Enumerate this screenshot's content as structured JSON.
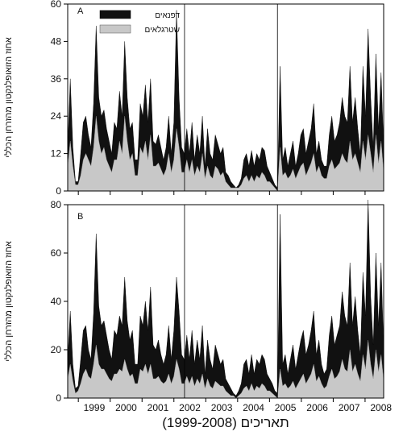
{
  "chart_data": [
    {
      "panel": "A",
      "type": "area",
      "ylabel": "אחוז הזואופלנקטון מהזרחן הכללי",
      "ylim": [
        0,
        60
      ],
      "yticks": [
        "0",
        "12",
        "24",
        "36",
        "48",
        "60"
      ],
      "legend_position": "top-left",
      "series": [
        {
          "name": "דפנאים",
          "color": "#111111",
          "values": [
            14,
            36,
            14,
            3,
            3,
            12,
            22,
            24,
            18,
            14,
            28,
            53,
            30,
            24,
            26,
            20,
            16,
            12,
            22,
            20,
            32,
            24,
            48,
            30,
            20,
            22,
            10,
            10,
            28,
            24,
            34,
            22,
            36,
            16,
            15,
            18,
            14,
            10,
            14,
            24,
            12,
            22,
            58,
            30,
            14,
            12,
            20,
            12,
            22,
            10,
            18,
            12,
            24,
            8,
            20,
            12,
            10,
            18,
            15,
            12,
            14,
            6,
            5,
            3,
            2,
            1,
            2,
            4,
            10,
            12,
            8,
            13,
            8,
            12,
            10,
            14,
            13,
            8,
            6,
            4,
            2,
            1,
            40,
            10,
            14,
            8,
            12,
            16,
            8,
            12,
            18,
            20,
            12,
            16,
            20,
            28,
            12,
            16,
            10,
            8,
            8,
            18,
            24,
            16,
            18,
            22,
            30,
            24,
            22,
            40,
            22,
            30,
            20,
            12,
            40,
            24,
            52,
            30,
            14,
            44,
            20,
            38,
            14
          ]
        },
        {
          "name": "שטרגלאים",
          "color": "#c8c8c8",
          "values": [
            8,
            16,
            8,
            2,
            2,
            5,
            10,
            12,
            10,
            8,
            14,
            24,
            16,
            12,
            14,
            10,
            8,
            6,
            10,
            10,
            16,
            12,
            24,
            16,
            10,
            12,
            5,
            5,
            14,
            12,
            16,
            10,
            18,
            8,
            8,
            9,
            7,
            5,
            7,
            12,
            6,
            10,
            20,
            14,
            6,
            6,
            10,
            6,
            10,
            5,
            8,
            6,
            12,
            4,
            8,
            5,
            4,
            8,
            7,
            5,
            6,
            3,
            2,
            1,
            1,
            1,
            1,
            2,
            4,
            5,
            3,
            5,
            3,
            5,
            4,
            6,
            5,
            3,
            3,
            2,
            1,
            0,
            14,
            5,
            6,
            4,
            5,
            7,
            4,
            6,
            8,
            9,
            5,
            7,
            9,
            12,
            6,
            8,
            5,
            4,
            4,
            8,
            10,
            7,
            8,
            9,
            12,
            10,
            9,
            16,
            10,
            12,
            9,
            6,
            16,
            10,
            18,
            12,
            6,
            18,
            9,
            16,
            6
          ]
        }
      ]
    },
    {
      "panel": "B",
      "type": "area",
      "ylabel": "אחוז הזואופלנקטון מהזרחן הכללי",
      "ylim": [
        0,
        80
      ],
      "yticks": [
        "0",
        "20",
        "40",
        "60",
        "80"
      ],
      "series": [
        {
          "name": "דפנאים",
          "values": [
            16,
            36,
            14,
            4,
            5,
            16,
            28,
            30,
            20,
            16,
            35,
            68,
            38,
            30,
            32,
            26,
            20,
            16,
            28,
            26,
            34,
            30,
            50,
            32,
            24,
            28,
            14,
            14,
            34,
            30,
            40,
            28,
            46,
            22,
            20,
            24,
            18,
            14,
            18,
            30,
            16,
            28,
            50,
            36,
            18,
            16,
            26,
            16,
            28,
            14,
            24,
            16,
            30,
            10,
            24,
            16,
            12,
            22,
            18,
            14,
            16,
            8,
            6,
            4,
            2,
            1,
            3,
            6,
            14,
            16,
            10,
            18,
            10,
            16,
            14,
            18,
            16,
            10,
            8,
            6,
            3,
            2,
            76,
            14,
            18,
            10,
            16,
            22,
            12,
            18,
            24,
            28,
            18,
            22,
            28,
            36,
            18,
            24,
            14,
            10,
            12,
            26,
            34,
            22,
            26,
            30,
            44,
            34,
            30,
            56,
            30,
            42,
            28,
            18,
            52,
            34,
            82,
            42,
            22,
            60,
            30,
            56,
            20
          ]
        },
        {
          "name": "שטרגלאים",
          "values": [
            8,
            14,
            7,
            2,
            3,
            6,
            10,
            12,
            9,
            8,
            14,
            22,
            14,
            12,
            12,
            10,
            8,
            7,
            10,
            10,
            12,
            11,
            16,
            12,
            9,
            10,
            6,
            6,
            12,
            11,
            14,
            10,
            14,
            8,
            8,
            9,
            7,
            6,
            7,
            10,
            6,
            9,
            16,
            12,
            6,
            6,
            9,
            6,
            9,
            5,
            8,
            6,
            10,
            4,
            8,
            5,
            4,
            7,
            6,
            5,
            5,
            3,
            2,
            1,
            1,
            0,
            1,
            2,
            4,
            5,
            3,
            6,
            3,
            5,
            4,
            6,
            5,
            3,
            3,
            2,
            1,
            0,
            12,
            5,
            6,
            4,
            5,
            7,
            4,
            6,
            8,
            10,
            6,
            8,
            10,
            14,
            7,
            9,
            6,
            4,
            5,
            9,
            12,
            8,
            9,
            11,
            16,
            12,
            11,
            20,
            11,
            14,
            10,
            7,
            18,
            12,
            24,
            14,
            8,
            20,
            11,
            18,
            7
          ]
        }
      ]
    }
  ],
  "x_axis": {
    "title": "תאריכים (1999-2008)",
    "tick_labels": [
      "1999",
      "2000",
      "2001",
      "2002",
      "2003",
      "2004",
      "2005",
      "2006",
      "2007",
      "2008"
    ],
    "start_date": "1998-09",
    "end_date": "2008-08",
    "reference_lines": [
      "2002-05",
      "2005-04"
    ]
  }
}
